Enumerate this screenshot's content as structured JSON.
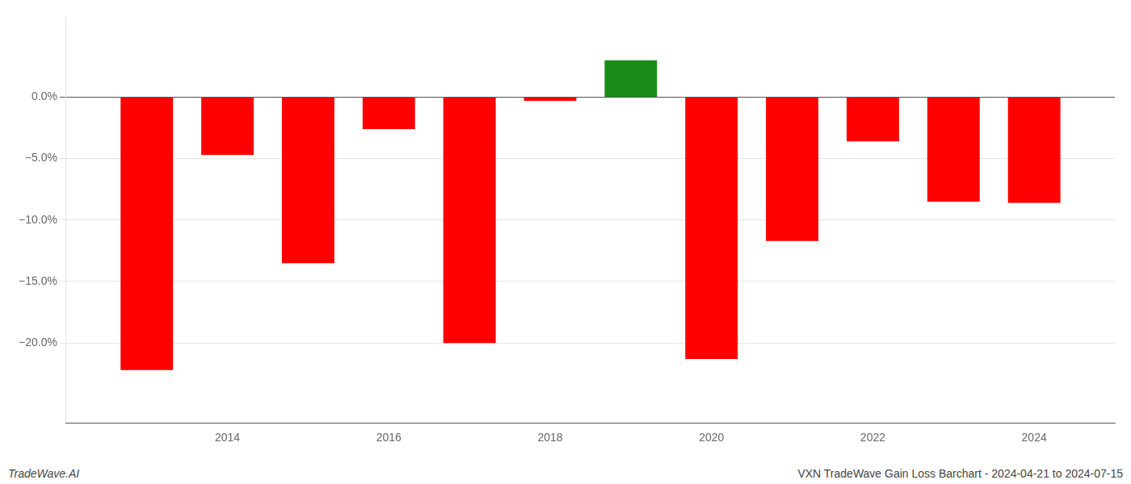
{
  "chart_data": {
    "type": "bar",
    "x": [
      2013,
      2014,
      2015,
      2016,
      2017,
      2018,
      2019,
      2020,
      2021,
      2022,
      2023,
      2024
    ],
    "values": [
      -0.222,
      -0.047,
      -0.135,
      -0.026,
      -0.2,
      -0.003,
      0.03,
      -0.213,
      -0.117,
      -0.036,
      -0.085,
      -0.086
    ],
    "colors": [
      "#ff0000",
      "#ff0000",
      "#ff0000",
      "#ff0000",
      "#ff0000",
      "#ff0000",
      "#1a8c1a",
      "#ff0000",
      "#ff0000",
      "#ff0000",
      "#ff0000",
      "#ff0000"
    ],
    "xlim": [
      2012,
      2025
    ],
    "xticks": [
      2014,
      2016,
      2018,
      2020,
      2022,
      2024
    ],
    "ylim": [
      -0.265,
      0.065
    ],
    "yticks": [
      {
        "value": 0.0,
        "label": "0.0%"
      },
      {
        "value": -0.05,
        "label": "−5.0%"
      },
      {
        "value": -0.1,
        "label": "−10.0%"
      },
      {
        "value": -0.15,
        "label": "−15.0%"
      },
      {
        "value": -0.2,
        "label": "−20.0%"
      }
    ],
    "grid": true,
    "annotations": [
      "TradeWave.AI",
      "VXN TradeWave Gain Loss Barchart - 2024-04-21 to 2024-07-15"
    ]
  }
}
